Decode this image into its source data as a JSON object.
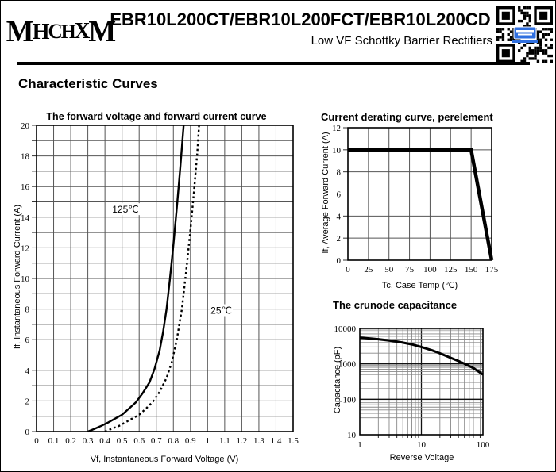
{
  "header": {
    "logo_text": "MHCHXM",
    "title": "EBR10L200CT/EBR10L200FCT/EBR10L200CD",
    "subtitle": "Low VF Schottky Barrier Rectifiers",
    "qr": {
      "dark_color": "#000000",
      "center_logo_color": "#2f6fe0"
    }
  },
  "section_title": "Characteristic Curves",
  "colors": {
    "curve": "#000000",
    "grid": "#555555",
    "grid_minor": "#888888",
    "border": "#000000"
  },
  "chart_data": [
    {
      "id": "forward-voltage-current",
      "type": "line",
      "title": "The forward voltage and forward current curve",
      "xlabel": "Vf, Instantaneous Forward Voltage (V)",
      "ylabel": "If, Instantaneous Forward Current (A)",
      "xlim": [
        0,
        1.5
      ],
      "ylim": [
        0,
        20
      ],
      "x_tick_values": [
        0,
        0.1,
        0.2,
        0.3,
        0.4,
        0.5,
        0.6,
        0.7,
        0.8,
        0.9,
        1,
        1.1,
        1.2,
        1.3,
        1.4,
        1.5
      ],
      "x_tick_labels": [
        "0",
        "0.1",
        "0.2",
        "0.3",
        "0.4",
        "0.5",
        "0.6",
        "0.7",
        "0.8",
        "0.9",
        "1",
        "1.1",
        "1.2",
        "1.3",
        "1.4",
        "1.5"
      ],
      "y_grid_step": 1,
      "y_label_step": 2,
      "y_tick_labels": [
        "0",
        "2",
        "4",
        "6",
        "8",
        "10",
        "12",
        "14",
        "16",
        "18",
        "20"
      ],
      "grid": true,
      "series": [
        {
          "name": "125C",
          "style": "solid",
          "points": [
            [
              0.3,
              0
            ],
            [
              0.34,
              0.18
            ],
            [
              0.38,
              0.38
            ],
            [
              0.42,
              0.6
            ],
            [
              0.46,
              0.85
            ],
            [
              0.5,
              1.1
            ],
            [
              0.54,
              1.5
            ],
            [
              0.58,
              1.9
            ],
            [
              0.62,
              2.5
            ],
            [
              0.66,
              3.2
            ],
            [
              0.69,
              4.1
            ],
            [
              0.72,
              5.3
            ],
            [
              0.74,
              6.5
            ],
            [
              0.76,
              8.0
            ],
            [
              0.78,
              10.0
            ],
            [
              0.8,
              12.2
            ],
            [
              0.82,
              14.6
            ],
            [
              0.84,
              17.2
            ],
            [
              0.86,
              20.0
            ]
          ]
        },
        {
          "name": "25C",
          "style": "dotted",
          "points": [
            [
              0.4,
              0
            ],
            [
              0.44,
              0.18
            ],
            [
              0.48,
              0.36
            ],
            [
              0.52,
              0.6
            ],
            [
              0.56,
              0.85
            ],
            [
              0.6,
              1.1
            ],
            [
              0.64,
              1.5
            ],
            [
              0.68,
              1.95
            ],
            [
              0.72,
              2.6
            ],
            [
              0.76,
              3.5
            ],
            [
              0.79,
              4.5
            ],
            [
              0.82,
              6.0
            ],
            [
              0.85,
              8.0
            ],
            [
              0.88,
              11.0
            ],
            [
              0.9,
              13.2
            ],
            [
              0.92,
              15.6
            ],
            [
              0.94,
              18.2
            ],
            [
              0.95,
              20.0
            ]
          ]
        }
      ],
      "annotations": [
        {
          "text": "125℃",
          "x": 0.52,
          "y": 14.5
        },
        {
          "text": "25℃",
          "x": 1.08,
          "y": 7.9
        }
      ]
    },
    {
      "id": "current-derating",
      "type": "line",
      "title": "Current derating curve, perelement",
      "xlabel": "Tc, Case Temp (℃)",
      "ylabel": "If, Average Forward Current (A)",
      "xlim": [
        0,
        175
      ],
      "ylim": [
        0,
        12
      ],
      "x_tick_values": [
        0,
        25,
        50,
        75,
        100,
        125,
        150,
        175
      ],
      "x_tick_labels": [
        "0",
        "25",
        "50",
        "75",
        "100",
        "125",
        "150",
        "175"
      ],
      "y_grid_step": 2,
      "y_label_step": 2,
      "y_tick_labels": [
        "0",
        "2",
        "4",
        "6",
        "8",
        "10",
        "12"
      ],
      "grid": true,
      "series": [
        {
          "name": "derating",
          "style": "thick",
          "points": [
            [
              0,
              10
            ],
            [
              150,
              10
            ],
            [
              175,
              0
            ]
          ]
        }
      ],
      "annotations": []
    },
    {
      "id": "junction-capacitance",
      "type": "line-loglog",
      "title": "The crunode capacitance",
      "xlabel": "Reverse Voltage",
      "ylabel": "Capacitance (pF)",
      "xlim": [
        1,
        100
      ],
      "ylim": [
        10,
        10000
      ],
      "x_tick_labels": [
        "1",
        "10",
        "100"
      ],
      "y_tick_labels": [
        "10",
        "100",
        "1000",
        "10000"
      ],
      "grid": true,
      "series": [
        {
          "name": "capacitance",
          "style": "thick",
          "points": [
            [
              1,
              5500
            ],
            [
              1.5,
              5200
            ],
            [
              2,
              4950
            ],
            [
              3,
              4550
            ],
            [
              4,
              4250
            ],
            [
              5,
              3980
            ],
            [
              7,
              3550
            ],
            [
              10,
              3000
            ],
            [
              15,
              2400
            ],
            [
              20,
              1980
            ],
            [
              30,
              1480
            ],
            [
              40,
              1200
            ],
            [
              50,
              1010
            ],
            [
              70,
              760
            ],
            [
              100,
              500
            ]
          ]
        }
      ]
    }
  ]
}
